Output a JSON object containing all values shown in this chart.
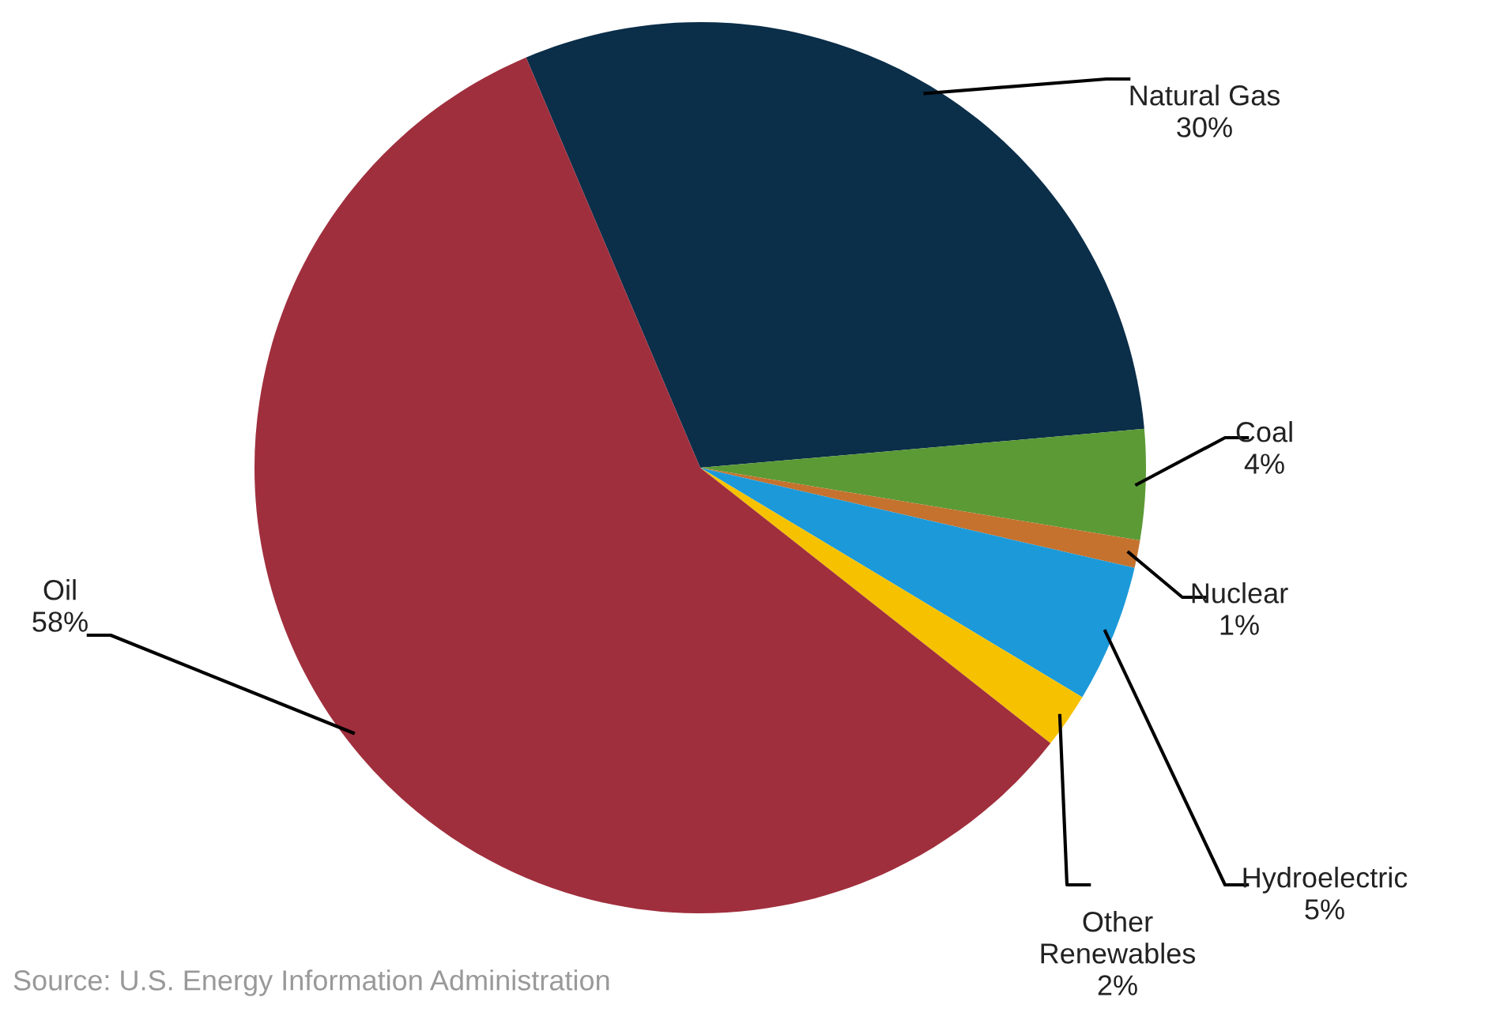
{
  "chart_data": {
    "type": "pie",
    "categories": [
      "Natural Gas",
      "Coal",
      "Nuclear",
      "Hydroelectric",
      "Other Renewables",
      "Oil"
    ],
    "values": [
      30,
      4,
      1,
      5,
      2,
      58
    ],
    "value_labels": [
      "30%",
      "4%",
      "1%",
      "5%",
      "2%",
      "58%"
    ],
    "colors": [
      "#0b2e49",
      "#5b9a35",
      "#c4722e",
      "#1c99d9",
      "#f6c200",
      "#a02f3d"
    ],
    "annotations": [
      "Source: U.S. Energy Information Administration"
    ]
  }
}
